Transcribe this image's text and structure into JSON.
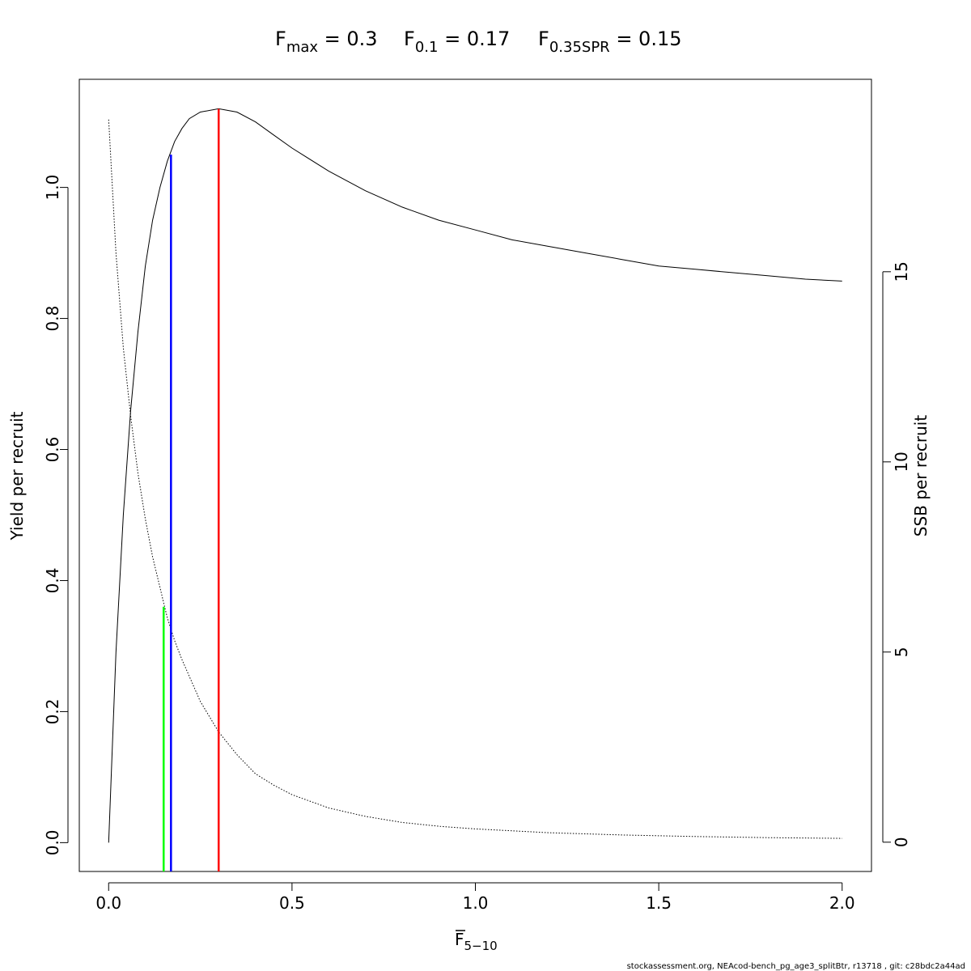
{
  "chart_data": {
    "type": "line",
    "title": {
      "fmax": {
        "sym": "F",
        "sub": "max",
        "value": " = 0.3"
      },
      "f01": {
        "sym": "F",
        "sub": "0.1",
        "value": " = 0.17"
      },
      "f035spr": {
        "sym": "F",
        "sub": "0.35SPR",
        "value": " = 0.15"
      }
    },
    "xlabel": {
      "sym": "F",
      "sub": "5−10"
    },
    "ylabel_left": "Yield per recruit",
    "ylabel_right": "SSB per recruit",
    "x_range": [
      -0.08,
      2.08
    ],
    "y_left_range": [
      -0.044,
      1.165
    ],
    "y_right_range": [
      -0.77,
      20.06
    ],
    "x_ticks": [
      {
        "value": 0.0,
        "label": "0.0"
      },
      {
        "value": 0.5,
        "label": "0.5"
      },
      {
        "value": 1.0,
        "label": "1.0"
      },
      {
        "value": 1.5,
        "label": "1.5"
      },
      {
        "value": 2.0,
        "label": "2.0"
      }
    ],
    "y_left_ticks": [
      {
        "value": 0.0,
        "label": "0.0"
      },
      {
        "value": 0.2,
        "label": "0.2"
      },
      {
        "value": 0.4,
        "label": "0.4"
      },
      {
        "value": 0.6,
        "label": "0.6"
      },
      {
        "value": 0.8,
        "label": "0.8"
      },
      {
        "value": 1.0,
        "label": "1.0"
      }
    ],
    "y_right_ticks": [
      {
        "value": 0,
        "label": "0"
      },
      {
        "value": 5,
        "label": "5"
      },
      {
        "value": 10,
        "label": "10"
      },
      {
        "value": 15,
        "label": "15"
      }
    ],
    "grid": false,
    "series": [
      {
        "axis": "left",
        "style": "solid",
        "color": "#000000",
        "x": [
          0.0,
          0.02,
          0.04,
          0.06,
          0.08,
          0.1,
          0.12,
          0.14,
          0.16,
          0.18,
          0.2,
          0.22,
          0.25,
          0.3,
          0.35,
          0.4,
          0.45,
          0.5,
          0.6,
          0.7,
          0.8,
          0.9,
          1.0,
          1.1,
          1.2,
          1.3,
          1.4,
          1.5,
          1.6,
          1.7,
          1.8,
          1.9,
          2.0
        ],
        "y": [
          0.0,
          0.29,
          0.5,
          0.66,
          0.78,
          0.88,
          0.95,
          1.0,
          1.04,
          1.07,
          1.09,
          1.105,
          1.115,
          1.12,
          1.115,
          1.1,
          1.08,
          1.06,
          1.025,
          0.995,
          0.97,
          0.95,
          0.935,
          0.92,
          0.91,
          0.9,
          0.89,
          0.88,
          0.875,
          0.87,
          0.865,
          0.86,
          0.857
        ]
      },
      {
        "axis": "right",
        "style": "dotted",
        "color": "#000000",
        "x": [
          0.0,
          0.02,
          0.04,
          0.06,
          0.08,
          0.1,
          0.12,
          0.14,
          0.15,
          0.16,
          0.18,
          0.2,
          0.25,
          0.3,
          0.35,
          0.4,
          0.45,
          0.5,
          0.6,
          0.7,
          0.8,
          0.9,
          1.0,
          1.2,
          1.4,
          1.6,
          1.8,
          2.0
        ],
        "y": [
          19.0,
          15.5,
          13.0,
          11.2,
          9.7,
          8.5,
          7.5,
          6.7,
          6.3,
          5.9,
          5.3,
          4.8,
          3.7,
          2.9,
          2.3,
          1.8,
          1.5,
          1.25,
          0.9,
          0.68,
          0.52,
          0.42,
          0.35,
          0.25,
          0.19,
          0.15,
          0.12,
          0.1
        ]
      }
    ],
    "reference_lines": [
      {
        "name": "Fmax",
        "x": 0.3,
        "y_top": 1.12,
        "color": "#ff0000"
      },
      {
        "name": "F0.1",
        "x": 0.17,
        "y_top": 1.05,
        "color": "#0000ff"
      },
      {
        "name": "F0.35SPR",
        "x": 0.15,
        "y_top": 0.36,
        "color": "#00ff00"
      }
    ]
  },
  "footer": "stockassessment.org, NEAcod-bench_pg_age3_splitBtr, r13718 , git: c28bdc2a44ad"
}
